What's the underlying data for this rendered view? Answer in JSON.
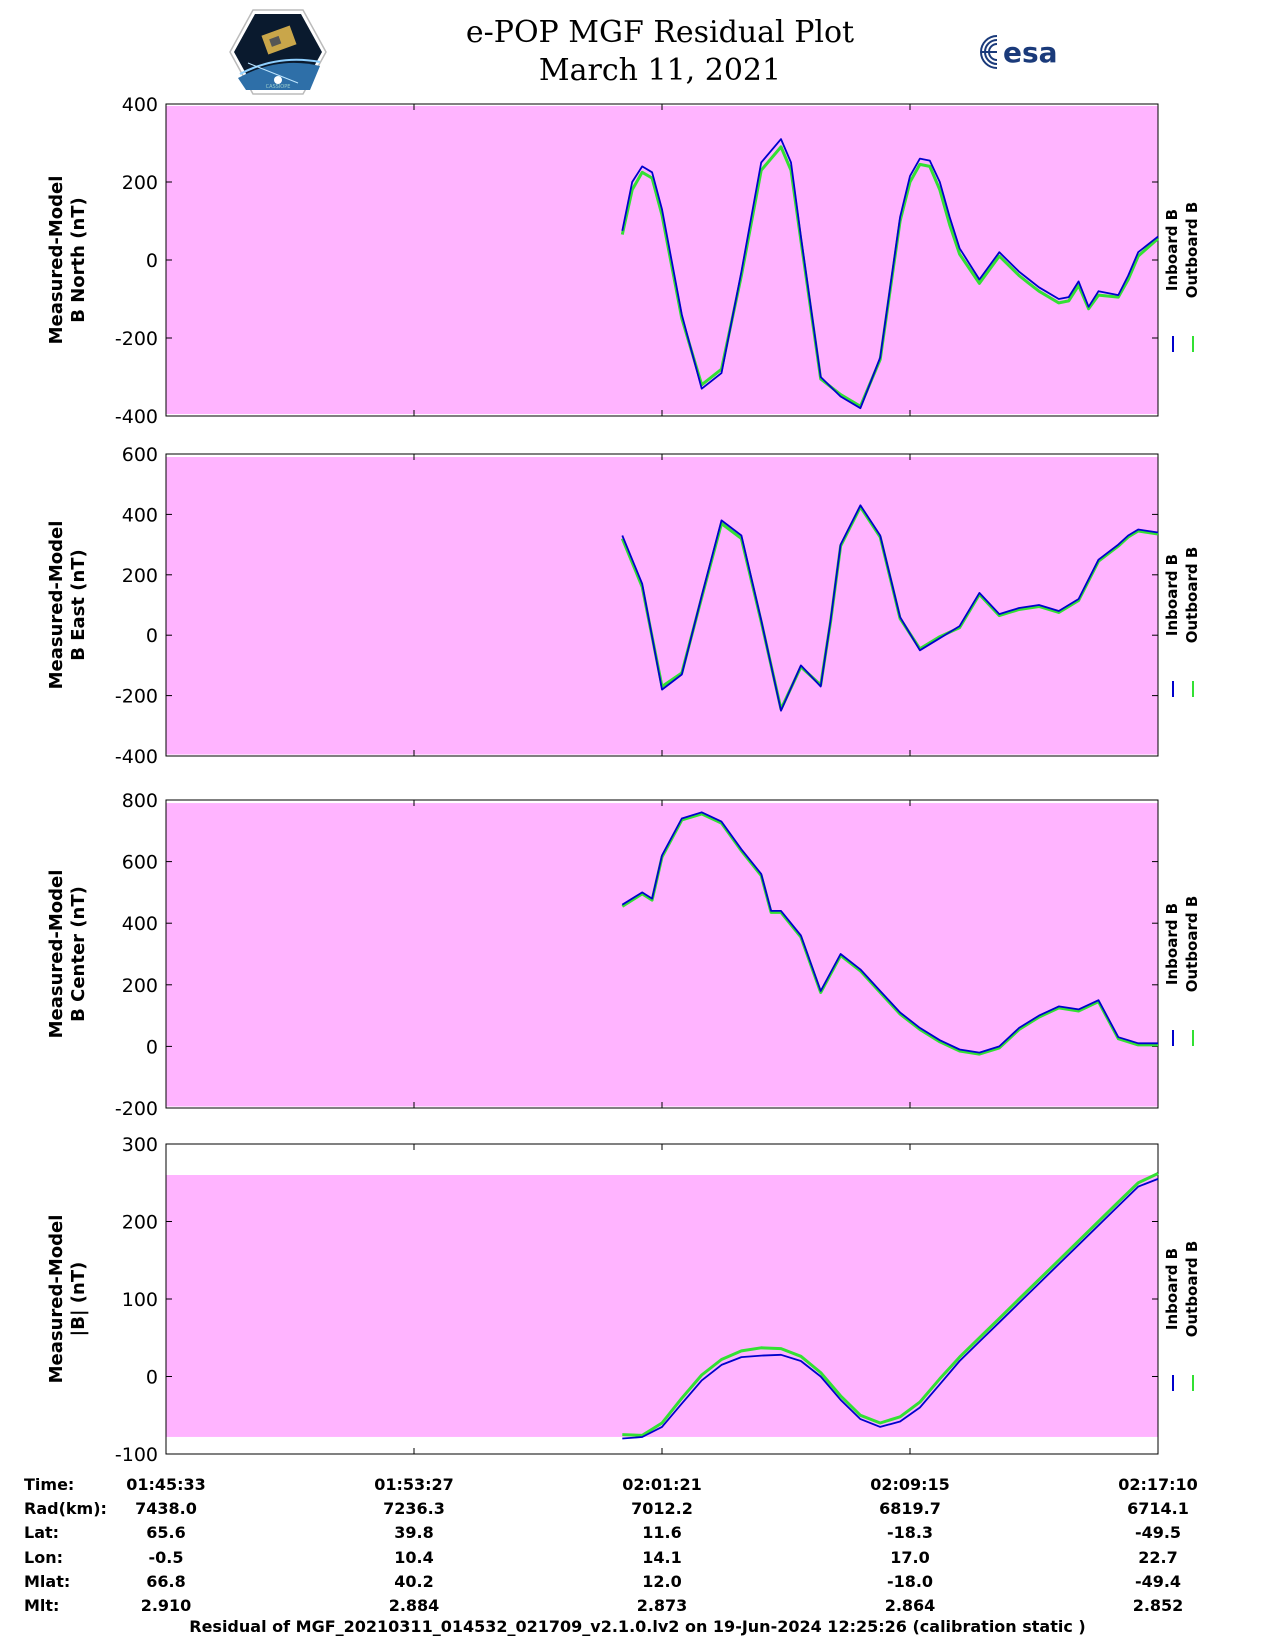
{
  "header": {
    "title_line1": "e-POP MGF Residual Plot",
    "title_line2": "March 11, 2021",
    "logo_left_text": "CASSIOPE",
    "logo_right_text": "esa"
  },
  "colors": {
    "background_band": "#ffb4ff",
    "inboard": "#0000cc",
    "outboard": "#33e033"
  },
  "legend": {
    "inboard": "Inboard B",
    "outboard": "Outboard B"
  },
  "ephemeris": {
    "labels": [
      "Time:",
      "Rad(km):",
      "Lat:",
      "Lon:",
      "Mlat:",
      "Mlt:"
    ],
    "columns": [
      {
        "time": "01:45:33",
        "rad": "7438.0",
        "lat": "65.6",
        "lon": "-0.5",
        "mlat": "66.8",
        "mlt": "2.910"
      },
      {
        "time": "01:53:27",
        "rad": "7236.3",
        "lat": "39.8",
        "lon": "10.4",
        "mlat": "40.2",
        "mlt": "2.884"
      },
      {
        "time": "02:01:21",
        "rad": "7012.2",
        "lat": "11.6",
        "lon": "14.1",
        "mlat": "12.0",
        "mlt": "2.873"
      },
      {
        "time": "02:09:15",
        "rad": "6819.7",
        "lat": "-18.3",
        "lon": "17.0",
        "mlat": "-18.0",
        "mlt": "2.864"
      },
      {
        "time": "02:17:10",
        "rad": "6714.1",
        "lat": "-49.5",
        "lon": "22.7",
        "mlat": "-49.4",
        "mlt": "2.852"
      }
    ]
  },
  "footer": "Residual of MGF_20210311_014532_021709_v2.1.0.lv2 on 19-Jun-2024 12:25:26 (calibration static )",
  "chart_data": [
    {
      "type": "line",
      "ylabel": [
        "Measured-Model",
        "B North (nT)"
      ],
      "ylim": [
        -400,
        400
      ],
      "yticks": [
        "400",
        "200",
        "0",
        "-200",
        "-400"
      ],
      "band": [
        -395,
        395
      ],
      "x": [
        0.46,
        0.47,
        0.48,
        0.49,
        0.5,
        0.52,
        0.54,
        0.56,
        0.58,
        0.6,
        0.62,
        0.63,
        0.64,
        0.66,
        0.68,
        0.7,
        0.72,
        0.74,
        0.75,
        0.76,
        0.77,
        0.78,
        0.79,
        0.8,
        0.82,
        0.84,
        0.86,
        0.87,
        0.88,
        0.9,
        0.91,
        0.92,
        0.93,
        0.94,
        0.96,
        0.97,
        0.98,
        1.0
      ],
      "series": [
        {
          "name": "Inboard B",
          "values": [
            75,
            200,
            240,
            225,
            130,
            -140,
            -330,
            -290,
            -30,
            250,
            310,
            250,
            60,
            -300,
            -350,
            -380,
            -250,
            110,
            215,
            260,
            255,
            200,
            110,
            30,
            -50,
            20,
            -30,
            -50,
            -70,
            -100,
            -95,
            -55,
            -120,
            -80,
            -90,
            -40,
            20,
            60
          ]
        },
        {
          "name": "Outboard B",
          "values": [
            65,
            180,
            225,
            210,
            115,
            -150,
            -320,
            -280,
            -40,
            230,
            290,
            230,
            50,
            -305,
            -345,
            -375,
            -255,
            100,
            200,
            245,
            240,
            180,
            90,
            15,
            -60,
            10,
            -40,
            -60,
            -80,
            -110,
            -105,
            -65,
            -125,
            -90,
            -95,
            -50,
            10,
            55
          ]
        }
      ]
    },
    {
      "type": "line",
      "ylabel": [
        "Measured-Model",
        "B East (nT)"
      ],
      "ylim": [
        -400,
        600
      ],
      "yticks": [
        "600",
        "400",
        "200",
        "0",
        "-200",
        "-400"
      ],
      "band": [
        -395,
        590
      ],
      "x": [
        0.46,
        0.48,
        0.5,
        0.52,
        0.54,
        0.56,
        0.58,
        0.6,
        0.62,
        0.64,
        0.66,
        0.67,
        0.68,
        0.7,
        0.72,
        0.74,
        0.76,
        0.78,
        0.8,
        0.82,
        0.84,
        0.85,
        0.86,
        0.88,
        0.9,
        0.92,
        0.94,
        0.96,
        0.97,
        0.98,
        1.0
      ],
      "series": [
        {
          "name": "Inboard B",
          "values": [
            330,
            170,
            -180,
            -130,
            130,
            380,
            330,
            50,
            -250,
            -100,
            -170,
            50,
            300,
            430,
            330,
            60,
            -50,
            -10,
            30,
            140,
            70,
            80,
            90,
            100,
            80,
            120,
            250,
            300,
            330,
            350,
            340
          ]
        },
        {
          "name": "Outboard B",
          "values": [
            320,
            160,
            -170,
            -125,
            125,
            370,
            320,
            45,
            -245,
            -105,
            -165,
            45,
            295,
            425,
            325,
            55,
            -45,
            -5,
            25,
            135,
            65,
            75,
            85,
            95,
            75,
            115,
            245,
            295,
            325,
            345,
            335
          ]
        }
      ]
    },
    {
      "type": "line",
      "ylabel": [
        "Measured-Model",
        "B Center (nT)"
      ],
      "ylim": [
        -200,
        800
      ],
      "yticks": [
        "800",
        "600",
        "400",
        "200",
        "0",
        "-200"
      ],
      "band": [
        -195,
        790
      ],
      "x": [
        0.46,
        0.48,
        0.49,
        0.5,
        0.52,
        0.54,
        0.56,
        0.58,
        0.6,
        0.61,
        0.62,
        0.64,
        0.66,
        0.68,
        0.7,
        0.72,
        0.74,
        0.76,
        0.78,
        0.8,
        0.82,
        0.84,
        0.86,
        0.88,
        0.9,
        0.92,
        0.94,
        0.96,
        0.97,
        0.98,
        1.0
      ],
      "series": [
        {
          "name": "Inboard B",
          "values": [
            460,
            500,
            480,
            620,
            740,
            760,
            730,
            640,
            560,
            440,
            440,
            360,
            180,
            300,
            250,
            180,
            110,
            60,
            20,
            -10,
            -20,
            0,
            60,
            100,
            130,
            120,
            150,
            30,
            20,
            10,
            10
          ]
        },
        {
          "name": "Outboard B",
          "values": [
            455,
            495,
            475,
            615,
            735,
            755,
            725,
            635,
            555,
            435,
            435,
            355,
            175,
            295,
            245,
            175,
            105,
            55,
            15,
            -15,
            -25,
            -5,
            55,
            95,
            125,
            115,
            145,
            25,
            15,
            5,
            5
          ]
        }
      ]
    },
    {
      "type": "line",
      "ylabel": [
        "Measured-Model",
        "|B| (nT)"
      ],
      "ylim": [
        -100,
        300
      ],
      "yticks": [
        "300",
        "200",
        "100",
        "0",
        "-100"
      ],
      "band": [
        -78,
        260
      ],
      "x": [
        0.46,
        0.48,
        0.5,
        0.52,
        0.54,
        0.56,
        0.58,
        0.6,
        0.62,
        0.64,
        0.66,
        0.68,
        0.7,
        0.72,
        0.74,
        0.76,
        0.78,
        0.8,
        0.82,
        0.84,
        0.86,
        0.88,
        0.9,
        0.92,
        0.94,
        0.96,
        0.98,
        1.0
      ],
      "series": [
        {
          "name": "Inboard B",
          "values": [
            -80,
            -78,
            -65,
            -35,
            -5,
            15,
            25,
            27,
            28,
            20,
            0,
            -30,
            -55,
            -65,
            -58,
            -40,
            -10,
            20,
            45,
            70,
            95,
            120,
            145,
            170,
            195,
            220,
            245,
            255
          ]
        },
        {
          "name": "Outboard B",
          "values": [
            -75,
            -76,
            -60,
            -28,
            2,
            22,
            33,
            37,
            36,
            26,
            5,
            -25,
            -50,
            -60,
            -52,
            -33,
            -3,
            25,
            50,
            75,
            100,
            125,
            150,
            175,
            200,
            225,
            250,
            262
          ]
        }
      ]
    }
  ]
}
